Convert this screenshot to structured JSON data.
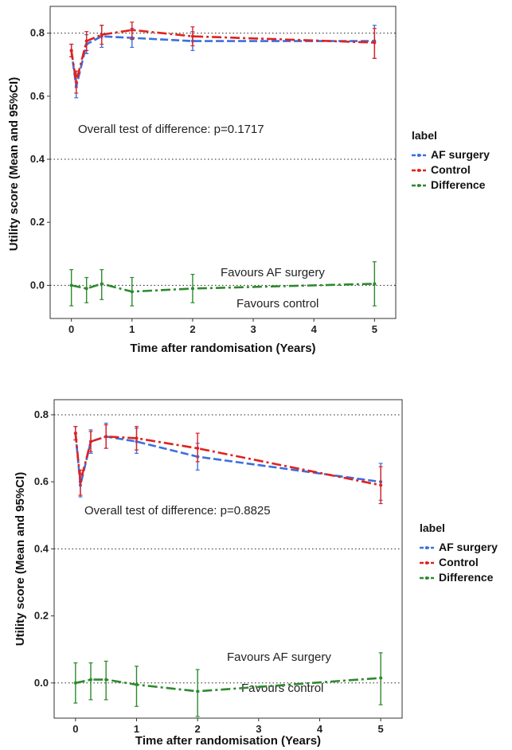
{
  "chart_data": [
    {
      "type": "line",
      "xlabel": "Time after randomisation (Years)",
      "ylabel": "Utility score (Mean and 95%CI)",
      "xlim": [
        -0.35,
        5.35
      ],
      "ylim": [
        -0.105,
        0.885
      ],
      "xticks": [
        "0",
        "1",
        "2",
        "3",
        "4",
        "5"
      ],
      "yticks": [
        "0.0",
        "0.2",
        "0.4",
        "0.6",
        "0.8"
      ],
      "reference_lines": [
        0.0,
        0.4,
        0.8
      ],
      "annotations": {
        "test": "Overall test of difference: p=0.1717",
        "favours_top": "Favours AF surgery",
        "favours_bottom": "Favours control"
      },
      "legend": {
        "title": "label",
        "position": "right"
      },
      "series": [
        {
          "name": "AF surgery",
          "color": "#3b6fe0",
          "x": [
            0,
            0.08,
            0.25,
            0.5,
            1,
            2,
            5
          ],
          "y": [
            0.745,
            0.63,
            0.765,
            0.79,
            0.785,
            0.775,
            0.775
          ],
          "lo": [
            0.725,
            0.595,
            0.735,
            0.755,
            0.755,
            0.745,
            0.72
          ],
          "hi": [
            0.765,
            0.665,
            0.795,
            0.825,
            0.815,
            0.805,
            0.825
          ]
        },
        {
          "name": "Control",
          "color": "#e0221e",
          "x": [
            0,
            0.08,
            0.25,
            0.5,
            1,
            2,
            5
          ],
          "y": [
            0.745,
            0.645,
            0.775,
            0.795,
            0.81,
            0.79,
            0.77
          ],
          "lo": [
            0.725,
            0.61,
            0.745,
            0.765,
            0.78,
            0.76,
            0.72
          ],
          "hi": [
            0.765,
            0.68,
            0.805,
            0.825,
            0.835,
            0.82,
            0.815
          ]
        },
        {
          "name": "Difference",
          "color": "#2d8a2d",
          "x": [
            0,
            0.25,
            0.5,
            1,
            2,
            5
          ],
          "y": [
            0.0,
            -0.01,
            0.005,
            -0.02,
            -0.01,
            0.005
          ],
          "lo": [
            -0.065,
            -0.055,
            -0.045,
            -0.065,
            -0.055,
            -0.065
          ],
          "hi": [
            0.05,
            0.025,
            0.05,
            0.025,
            0.035,
            0.075
          ]
        }
      ]
    },
    {
      "type": "line",
      "xlabel": "Time after randomisation (Years)",
      "ylabel": "Utility score (Mean and 95%CI)",
      "xlim": [
        -0.35,
        5.35
      ],
      "ylim": [
        -0.105,
        0.845
      ],
      "xticks": [
        "0",
        "1",
        "2",
        "3",
        "4",
        "5"
      ],
      "yticks": [
        "0.0",
        "0.2",
        "0.4",
        "0.6",
        "0.8"
      ],
      "reference_lines": [
        0.0,
        0.4,
        0.8
      ],
      "annotations": {
        "test": "Overall test of difference: p=0.8825",
        "favours_top": "Favours AF surgery",
        "favours_bottom": "Favours control"
      },
      "legend": {
        "title": "label",
        "position": "right"
      },
      "series": [
        {
          "name": "AF surgery",
          "color": "#3b6fe0",
          "x": [
            0,
            0.08,
            0.25,
            0.5,
            1,
            2,
            5
          ],
          "y": [
            0.745,
            0.59,
            0.72,
            0.735,
            0.72,
            0.675,
            0.6
          ],
          "lo": [
            0.725,
            0.555,
            0.685,
            0.7,
            0.685,
            0.635,
            0.545
          ],
          "hi": [
            0.765,
            0.625,
            0.755,
            0.775,
            0.76,
            0.715,
            0.655
          ]
        },
        {
          "name": "Control",
          "color": "#e0221e",
          "x": [
            0,
            0.08,
            0.25,
            0.5,
            1,
            2,
            5
          ],
          "y": [
            0.745,
            0.6,
            0.72,
            0.735,
            0.73,
            0.7,
            0.59
          ],
          "lo": [
            0.725,
            0.56,
            0.69,
            0.7,
            0.695,
            0.66,
            0.535
          ],
          "hi": [
            0.765,
            0.635,
            0.75,
            0.77,
            0.765,
            0.745,
            0.645
          ]
        },
        {
          "name": "Difference",
          "color": "#2d8a2d",
          "x": [
            0,
            0.25,
            0.5,
            1,
            2,
            5
          ],
          "y": [
            0.0,
            0.01,
            0.01,
            -0.005,
            -0.025,
            0.015
          ],
          "lo": [
            -0.06,
            -0.05,
            -0.05,
            -0.07,
            -0.1,
            -0.065
          ],
          "hi": [
            0.06,
            0.06,
            0.065,
            0.05,
            0.04,
            0.09
          ]
        }
      ]
    }
  ]
}
